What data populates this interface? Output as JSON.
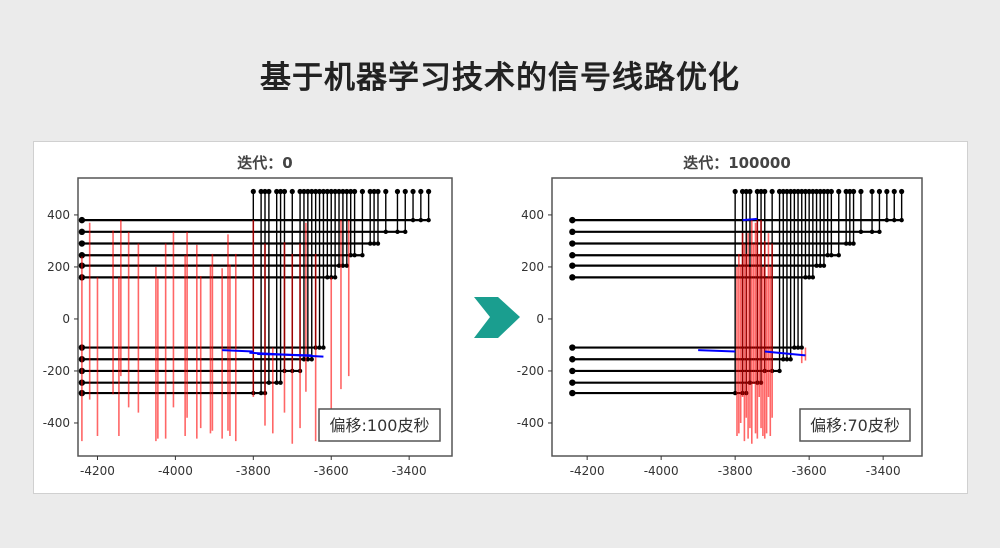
{
  "page": {
    "title": "基于机器学习技术的信号线路优化",
    "background": "#ebebeb"
  },
  "arrow": {
    "icon": "right-arrow-icon",
    "color": "#1a9e8f"
  },
  "colors": {
    "net": "#000000",
    "delay": "#ff0000",
    "segment": "#0000ff"
  },
  "chart_data": [
    {
      "type": "line",
      "title": "迭代：0",
      "legend": "偏移:100皮秒",
      "legend_placement": "bottom-right",
      "xlim": [
        -4250,
        -3290
      ],
      "ylim": [
        -527,
        542
      ],
      "xticks": [
        -4200,
        -4000,
        -3800,
        -3600,
        -3400
      ],
      "yticks": [
        -400,
        -200,
        0,
        200,
        400
      ],
      "grid": false,
      "pin_y": 490,
      "net_start_x": -4240,
      "nets": [
        {
          "y": 380,
          "taps": [
            -3350,
            -3370,
            -3390
          ]
        },
        {
          "y": 335,
          "taps": [
            -3410,
            -3430,
            -3460
          ]
        },
        {
          "y": 290,
          "taps": [
            -3480,
            -3490,
            -3500
          ]
        },
        {
          "y": 245,
          "taps": [
            -3520,
            -3540,
            -3550
          ]
        },
        {
          "y": 205,
          "taps": [
            -3560,
            -3570,
            -3580
          ]
        },
        {
          "y": 160,
          "taps": [
            -3590,
            -3600,
            -3610
          ]
        },
        {
          "y": -110,
          "taps": [
            -3620,
            -3630,
            -3640
          ]
        },
        {
          "y": -155,
          "taps": [
            -3650,
            -3660,
            -3670
          ]
        },
        {
          "y": -200,
          "taps": [
            -3680,
            -3700,
            -3720
          ]
        },
        {
          "y": -245,
          "taps": [
            -3730,
            -3740,
            -3760
          ]
        },
        {
          "y": -285,
          "taps": [
            -3770,
            -3780,
            -3800
          ]
        }
      ],
      "delay_lines": [
        [
          -4240,
          240,
          -470
        ],
        [
          -4220,
          370,
          -310
        ],
        [
          -4200,
          160,
          -450
        ],
        [
          -4160,
          340,
          -290
        ],
        [
          -4140,
          380,
          -220
        ],
        [
          -4145,
          160,
          -450
        ],
        [
          -4120,
          335,
          -340
        ],
        [
          -4095,
          290,
          -360
        ],
        [
          -4050,
          200,
          -470
        ],
        [
          -4045,
          155,
          -460
        ],
        [
          -4025,
          290,
          -460
        ],
        [
          -4005,
          335,
          -340
        ],
        [
          -3975,
          245,
          -450
        ],
        [
          -3970,
          335,
          -380
        ],
        [
          -3945,
          285,
          -460
        ],
        [
          -3935,
          165,
          -420
        ],
        [
          -3910,
          205,
          -440
        ],
        [
          -3905,
          250,
          -430
        ],
        [
          -3880,
          195,
          -460
        ],
        [
          -3865,
          325,
          -430
        ],
        [
          -3860,
          210,
          -450
        ],
        [
          -3845,
          250,
          -470
        ],
        [
          -3800,
          380,
          -300
        ],
        [
          -3770,
          290,
          -410
        ],
        [
          -3750,
          -110,
          -440
        ],
        [
          -3720,
          295,
          -360
        ],
        [
          -3700,
          250,
          -480
        ],
        [
          -3680,
          290,
          -420
        ],
        [
          -3665,
          370,
          -280
        ],
        [
          -3640,
          250,
          -470
        ],
        [
          -3600,
          160,
          -380
        ],
        [
          -3575,
          380,
          -270
        ],
        [
          -3555,
          380,
          -220
        ]
      ],
      "segments": [
        [
          -3880,
          -120,
          -3800,
          -125
        ],
        [
          -3810,
          -130,
          -3620,
          -145
        ],
        [
          -3790,
          -135,
          -3650,
          -140
        ]
      ]
    },
    {
      "type": "line",
      "title": "迭代：100000",
      "legend": "偏移:70皮秒",
      "legend_placement": "bottom-right",
      "xlim": [
        -4295,
        -3295
      ],
      "ylim": [
        -527,
        542
      ],
      "xticks": [
        -4200,
        -4000,
        -3800,
        -3600,
        -3400
      ],
      "yticks": [
        -400,
        -200,
        0,
        200,
        400
      ],
      "grid": false,
      "pin_y": 490,
      "net_start_x": -4240,
      "nets": [
        {
          "y": 380,
          "taps": [
            -3350,
            -3370,
            -3390
          ]
        },
        {
          "y": 335,
          "taps": [
            -3410,
            -3430,
            -3460
          ]
        },
        {
          "y": 290,
          "taps": [
            -3480,
            -3490,
            -3500
          ]
        },
        {
          "y": 245,
          "taps": [
            -3520,
            -3540,
            -3550
          ]
        },
        {
          "y": 205,
          "taps": [
            -3560,
            -3570,
            -3580
          ]
        },
        {
          "y": 160,
          "taps": [
            -3590,
            -3600,
            -3610
          ]
        },
        {
          "y": -110,
          "taps": [
            -3620,
            -3630,
            -3640
          ]
        },
        {
          "y": -155,
          "taps": [
            -3650,
            -3660,
            -3670
          ]
        },
        {
          "y": -200,
          "taps": [
            -3680,
            -3700,
            -3720
          ]
        },
        {
          "y": -245,
          "taps": [
            -3730,
            -3740,
            -3760
          ]
        },
        {
          "y": -285,
          "taps": [
            -3770,
            -3780,
            -3800
          ]
        }
      ],
      "delay_lines": [
        [
          -3795,
          200,
          -450
        ],
        [
          -3790,
          250,
          -440
        ],
        [
          -3785,
          210,
          -400
        ],
        [
          -3780,
          330,
          -300
        ],
        [
          -3775,
          290,
          -470
        ],
        [
          -3770,
          250,
          -380
        ],
        [
          -3765,
          330,
          -460
        ],
        [
          -3760,
          200,
          -420
        ],
        [
          -3755,
          380,
          -480
        ],
        [
          -3750,
          290,
          -250
        ],
        [
          -3745,
          370,
          -440
        ],
        [
          -3740,
          380,
          -460
        ],
        [
          -3735,
          250,
          -300
        ],
        [
          -3730,
          380,
          -420
        ],
        [
          -3725,
          200,
          -450
        ],
        [
          -3720,
          300,
          -460
        ],
        [
          -3715,
          160,
          -440
        ],
        [
          -3710,
          330,
          -300
        ],
        [
          -3705,
          200,
          -450
        ],
        [
          -3700,
          290,
          -380
        ],
        [
          -3620,
          -120,
          -170
        ],
        [
          -3610,
          -110,
          -160
        ]
      ],
      "segments": [
        [
          -3900,
          -120,
          -3800,
          -125
        ],
        [
          -3720,
          -125,
          -3610,
          -140
        ],
        [
          -3780,
          380,
          -3740,
          385
        ]
      ]
    }
  ]
}
